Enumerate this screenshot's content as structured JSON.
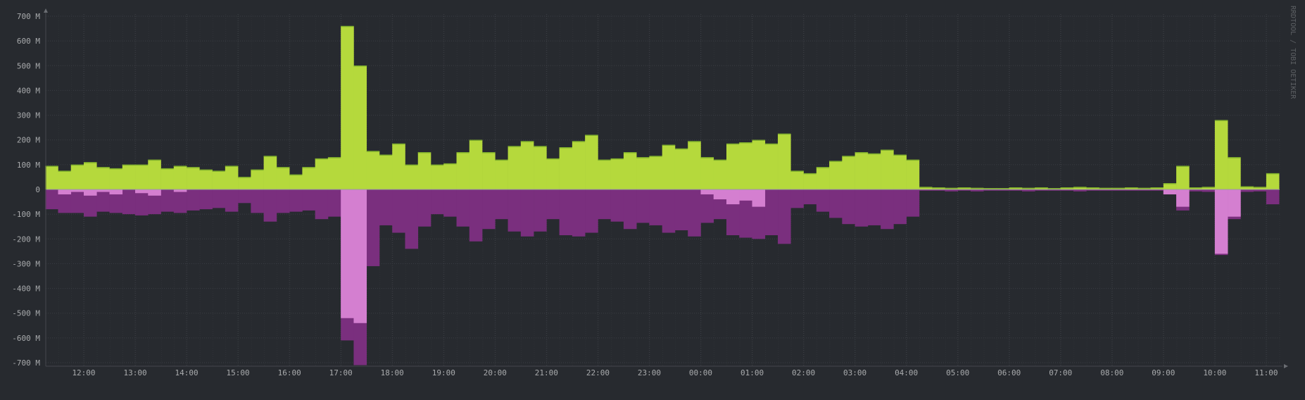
{
  "watermark": "RRDTOOL / TOBI OETIKER",
  "colors": {
    "background": "#272a2f",
    "grid": "#3b3e44",
    "axis_text": "#a9abad",
    "inbound": "#b5d93c",
    "inbound_edge": "#7fae2c",
    "outbound": "#7a2f7e",
    "outbound_highlight": "#d47fd0"
  },
  "chart_data": {
    "type": "area",
    "title": "",
    "xlabel": "",
    "ylabel": "",
    "ylim": [
      -700,
      700
    ],
    "y_unit": "M",
    "y_ticks": [
      "700 M",
      "600 M",
      "500 M",
      "400 M",
      "300 M",
      "200 M",
      "100 M",
      "0",
      "-100 M",
      "-200 M",
      "-300 M",
      "-400 M",
      "-500 M",
      "-600 M",
      "-700 M"
    ],
    "x_ticks": [
      "12:00",
      "13:00",
      "14:00",
      "15:00",
      "16:00",
      "17:00",
      "18:00",
      "19:00",
      "20:00",
      "21:00",
      "22:00",
      "23:00",
      "00:00",
      "01:00",
      "02:00",
      "03:00",
      "04:00",
      "05:00",
      "06:00",
      "07:00",
      "08:00",
      "09:00",
      "10:00",
      "11:00"
    ],
    "x_start": "11:15",
    "x_step_minutes": 15,
    "grid": true,
    "series": [
      {
        "values": [
          95,
          75,
          100,
          110,
          90,
          85,
          100,
          100,
          120,
          85,
          95,
          90,
          80,
          75,
          95,
          50,
          80,
          135,
          90,
          60,
          90,
          125,
          130,
          660,
          500,
          155,
          140,
          185,
          100,
          150,
          100,
          105,
          150,
          200,
          150,
          120,
          175,
          195,
          175,
          125,
          170,
          195,
          220,
          120,
          125,
          150,
          130,
          135,
          180,
          165,
          195,
          130,
          120,
          185,
          190,
          200,
          185,
          225,
          75,
          65,
          90,
          115,
          135,
          150,
          145,
          160,
          140,
          120,
          10,
          8,
          6,
          8,
          6,
          5,
          5,
          8,
          6,
          8,
          5,
          8,
          10,
          8,
          6,
          6,
          8,
          6,
          8,
          25,
          95,
          8,
          10,
          280,
          130,
          12,
          10,
          65
        ]
      },
      {
        "values": [
          -80,
          -95,
          -95,
          -110,
          -90,
          -95,
          -100,
          -105,
          -100,
          -90,
          -95,
          -85,
          -80,
          -75,
          -90,
          -55,
          -95,
          -130,
          -95,
          -90,
          -85,
          -120,
          -110,
          -610,
          -710,
          -310,
          -145,
          -175,
          -240,
          -150,
          -100,
          -110,
          -150,
          -210,
          -160,
          -120,
          -170,
          -190,
          -170,
          -120,
          -185,
          -190,
          -175,
          -120,
          -130,
          -160,
          -135,
          -145,
          -175,
          -165,
          -190,
          -135,
          -120,
          -185,
          -195,
          -200,
          -185,
          -220,
          -75,
          -60,
          -90,
          -115,
          -140,
          -150,
          -145,
          -160,
          -140,
          -110,
          -5,
          -5,
          -8,
          -5,
          -8,
          -5,
          -5,
          -5,
          -8,
          -5,
          -5,
          -5,
          -8,
          -5,
          -5,
          -5,
          -5,
          -5,
          -5,
          -20,
          -85,
          -8,
          -10,
          -265,
          -120,
          -10,
          -8,
          -60
        ]
      },
      {
        "values": [
          0,
          -20,
          -10,
          -25,
          -10,
          -20,
          0,
          -15,
          -25,
          0,
          -10,
          0,
          0,
          0,
          0,
          0,
          0,
          0,
          0,
          0,
          0,
          0,
          0,
          -520,
          -540,
          0,
          0,
          0,
          0,
          0,
          0,
          0,
          0,
          0,
          0,
          0,
          0,
          0,
          0,
          0,
          0,
          0,
          0,
          0,
          0,
          0,
          0,
          0,
          0,
          0,
          0,
          -20,
          -40,
          -60,
          -45,
          -70,
          0,
          0,
          0,
          0,
          0,
          0,
          0,
          0,
          0,
          0,
          0,
          0,
          0,
          0,
          0,
          0,
          0,
          0,
          0,
          0,
          0,
          0,
          0,
          0,
          0,
          0,
          0,
          0,
          0,
          0,
          0,
          -20,
          -70,
          0,
          0,
          -260,
          -110,
          0,
          0,
          0
        ]
      }
    ]
  }
}
